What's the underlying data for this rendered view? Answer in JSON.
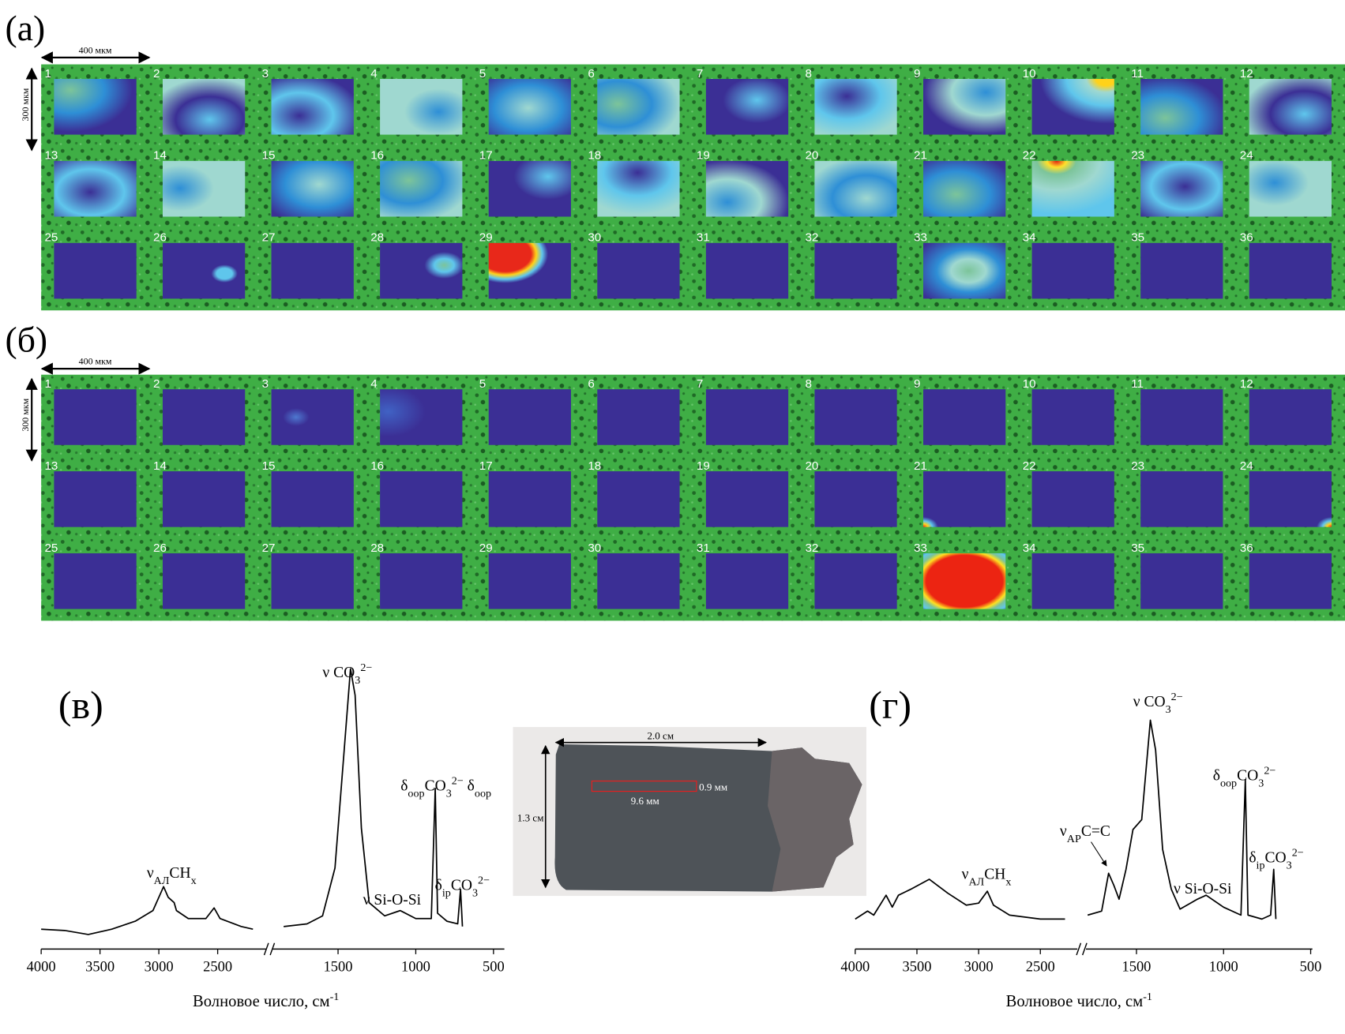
{
  "panels": [
    {
      "label": "(a)",
      "scale_x": "400 мкм",
      "scale_y": "300 мкм",
      "tiles": [
        "1",
        "2",
        "3",
        "4",
        "5",
        "6",
        "7",
        "8",
        "9",
        "10",
        "11",
        "12",
        "13",
        "14",
        "15",
        "16",
        "17",
        "18",
        "19",
        "20",
        "21",
        "22",
        "23",
        "24",
        "25",
        "26",
        "27",
        "28",
        "29",
        "30",
        "31",
        "32",
        "33",
        "34",
        "35",
        "36"
      ]
    },
    {
      "label": "(б)",
      "scale_x": "400 мкм",
      "scale_y": "300 мкм",
      "tiles": [
        "1",
        "2",
        "3",
        "4",
        "5",
        "6",
        "7",
        "8",
        "9",
        "10",
        "11",
        "12",
        "13",
        "14",
        "15",
        "16",
        "17",
        "18",
        "19",
        "20",
        "21",
        "22",
        "23",
        "24",
        "25",
        "26",
        "27",
        "28",
        "29",
        "30",
        "31",
        "32",
        "33",
        "34",
        "35",
        "36"
      ]
    }
  ],
  "chart_data": [
    {
      "type": "line",
      "label": "(в)",
      "x_label": "Волновое число, см",
      "x_label_sup": "-1",
      "color": "#000000",
      "ylim": [
        0,
        1
      ],
      "segments": [
        {
          "xlim": [
            4000,
            2090
          ],
          "xticks": [
            4000,
            3500,
            3000,
            2500
          ],
          "x": [
            4000,
            3800,
            3600,
            3400,
            3200,
            3050,
            2960,
            2920,
            2870,
            2850,
            2750,
            2600,
            2530,
            2480,
            2300,
            2200
          ],
          "values": [
            0.02,
            0.015,
            0,
            0.02,
            0.05,
            0.09,
            0.18,
            0.14,
            0.12,
            0.09,
            0.06,
            0.06,
            0.1,
            0.06,
            0.03,
            0.02
          ]
        },
        {
          "xlim": [
            1920,
            430
          ],
          "xticks": [
            1500,
            1000,
            500
          ],
          "x": [
            1850,
            1700,
            1600,
            1520,
            1460,
            1420,
            1390,
            1350,
            1300,
            1200,
            1100,
            1000,
            900,
            875,
            860,
            800,
            730,
            712,
            700
          ],
          "values": [
            0.03,
            0.04,
            0.07,
            0.25,
            0.7,
            1,
            0.9,
            0.4,
            0.12,
            0.07,
            0.09,
            0.06,
            0.06,
            0.55,
            0.08,
            0.05,
            0.04,
            0.17,
            0.03
          ]
        }
      ],
      "annotations": [
        [
          {
            "t": "ν CO",
            "s": "base"
          },
          {
            "t": "3",
            "s": "sub"
          },
          {
            "t": "2−",
            "s": "sup"
          }
        ],
        [
          {
            "t": "ν",
            "s": "base"
          },
          {
            "t": "АЛ",
            "s": "sub"
          },
          {
            "t": "CH",
            "s": "base"
          },
          {
            "t": "x",
            "s": "sub"
          }
        ],
        [
          {
            "t": "ν Si-O-Si",
            "s": "base"
          }
        ],
        [
          {
            "t": "δ",
            "s": "base"
          },
          {
            "t": "oop",
            "s": "sub"
          },
          {
            "t": "CO",
            "s": "base"
          },
          {
            "t": "3",
            "s": "sub"
          },
          {
            "t": "2−",
            "s": "sup"
          },
          {
            "t": " δ",
            "s": "base"
          },
          {
            "t": "oop",
            "s": "sub"
          }
        ],
        [
          {
            "t": "δ",
            "s": "base"
          },
          {
            "t": "ip",
            "s": "sub"
          },
          {
            "t": "CO",
            "s": "base"
          },
          {
            "t": "3",
            "s": "sub"
          },
          {
            "t": "2−",
            "s": "sup"
          }
        ]
      ]
    },
    {
      "type": "line",
      "label": "(г)",
      "x_label": "Волновое число, см",
      "x_label_sup": "-1",
      "color": "#000000",
      "ylim": [
        0,
        1
      ],
      "segments": [
        {
          "xlim": [
            4000,
            2200
          ],
          "xticks": [
            4000,
            3500,
            3000,
            2500
          ],
          "x": [
            4000,
            3900,
            3850,
            3750,
            3700,
            3650,
            3550,
            3400,
            3250,
            3100,
            3000,
            2930,
            2880,
            2750,
            2500,
            2300
          ],
          "values": [
            0,
            0.04,
            0.02,
            0.12,
            0.06,
            0.12,
            0.15,
            0.2,
            0.13,
            0.07,
            0.08,
            0.14,
            0.07,
            0.02,
            0,
            0
          ]
        },
        {
          "xlim": [
            1790,
            490
          ],
          "xticks": [
            1500,
            1000,
            500
          ],
          "x": [
            1780,
            1700,
            1660,
            1630,
            1600,
            1560,
            1520,
            1470,
            1420,
            1390,
            1350,
            1300,
            1250,
            1150,
            1100,
            1000,
            900,
            875,
            860,
            780,
            730,
            712,
            700
          ],
          "values": [
            0.02,
            0.04,
            0.23,
            0.17,
            0.1,
            0.25,
            0.45,
            0.5,
            1,
            0.85,
            0.35,
            0.15,
            0.05,
            0.1,
            0.12,
            0.06,
            0.02,
            0.7,
            0.02,
            0,
            0.02,
            0.25,
            0
          ]
        }
      ],
      "annotations": [
        [
          {
            "t": "ν CO",
            "s": "base"
          },
          {
            "t": "3",
            "s": "sub"
          },
          {
            "t": "2−",
            "s": "sup"
          }
        ],
        [
          {
            "t": "ν",
            "s": "base"
          },
          {
            "t": "AP",
            "s": "sub"
          },
          {
            "t": "C=C",
            "s": "base"
          }
        ],
        [
          {
            "t": "ν",
            "s": "base"
          },
          {
            "t": "АЛ",
            "s": "sub"
          },
          {
            "t": "CH",
            "s": "base"
          },
          {
            "t": "x",
            "s": "sub"
          }
        ],
        [
          {
            "t": "ν Si-O-Si",
            "s": "base"
          }
        ],
        [
          {
            "t": "δ",
            "s": "base"
          },
          {
            "t": "oop",
            "s": "sub"
          },
          {
            "t": "CO",
            "s": "base"
          },
          {
            "t": "3",
            "s": "sub"
          },
          {
            "t": "2−",
            "s": "sup"
          }
        ],
        [
          {
            "t": "δ",
            "s": "base"
          },
          {
            "t": "ip",
            "s": "sub"
          },
          {
            "t": "CO",
            "s": "base"
          },
          {
            "t": "3",
            "s": "sub"
          },
          {
            "t": "2−",
            "s": "sup"
          }
        ]
      ]
    }
  ],
  "photo": {
    "width": "2.0 см",
    "height": "1.3 см",
    "region_w": "9.6 мм",
    "region_h": "0.9 мм"
  }
}
